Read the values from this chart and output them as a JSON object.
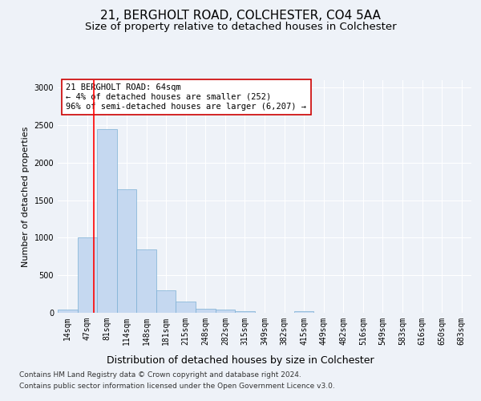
{
  "title1": "21, BERGHOLT ROAD, COLCHESTER, CO4 5AA",
  "title2": "Size of property relative to detached houses in Colchester",
  "xlabel": "Distribution of detached houses by size in Colchester",
  "ylabel": "Number of detached properties",
  "footnote1": "Contains HM Land Registry data © Crown copyright and database right 2024.",
  "footnote2": "Contains public sector information licensed under the Open Government Licence v3.0.",
  "annotation_line1": "21 BERGHOLT ROAD: 64sqm",
  "annotation_line2": "← 4% of detached houses are smaller (252)",
  "annotation_line3": "96% of semi-detached houses are larger (6,207) →",
  "bar_values": [
    47,
    1000,
    2450,
    1650,
    840,
    300,
    150,
    50,
    40,
    25,
    0,
    0,
    25,
    0,
    0,
    0,
    0,
    0,
    0,
    0,
    0
  ],
  "x_labels": [
    "14sqm",
    "47sqm",
    "81sqm",
    "114sqm",
    "148sqm",
    "181sqm",
    "215sqm",
    "248sqm",
    "282sqm",
    "315sqm",
    "349sqm",
    "382sqm",
    "415sqm",
    "449sqm",
    "482sqm",
    "516sqm",
    "549sqm",
    "583sqm",
    "616sqm",
    "650sqm",
    "683sqm"
  ],
  "bar_color": "#c5d8f0",
  "bar_edge_color": "#7bafd4",
  "red_line_x": 1.35,
  "ylim": [
    0,
    3100
  ],
  "yticks": [
    0,
    500,
    1000,
    1500,
    2000,
    2500,
    3000
  ],
  "annotation_box_color": "#cc0000",
  "annotation_box_fill": "#ffffff",
  "background_color": "#eef2f8",
  "grid_color": "#ffffff",
  "title1_fontsize": 11,
  "title2_fontsize": 9.5,
  "xlabel_fontsize": 9,
  "ylabel_fontsize": 8,
  "tick_fontsize": 7,
  "annotation_fontsize": 7.5,
  "footnote_fontsize": 6.5
}
